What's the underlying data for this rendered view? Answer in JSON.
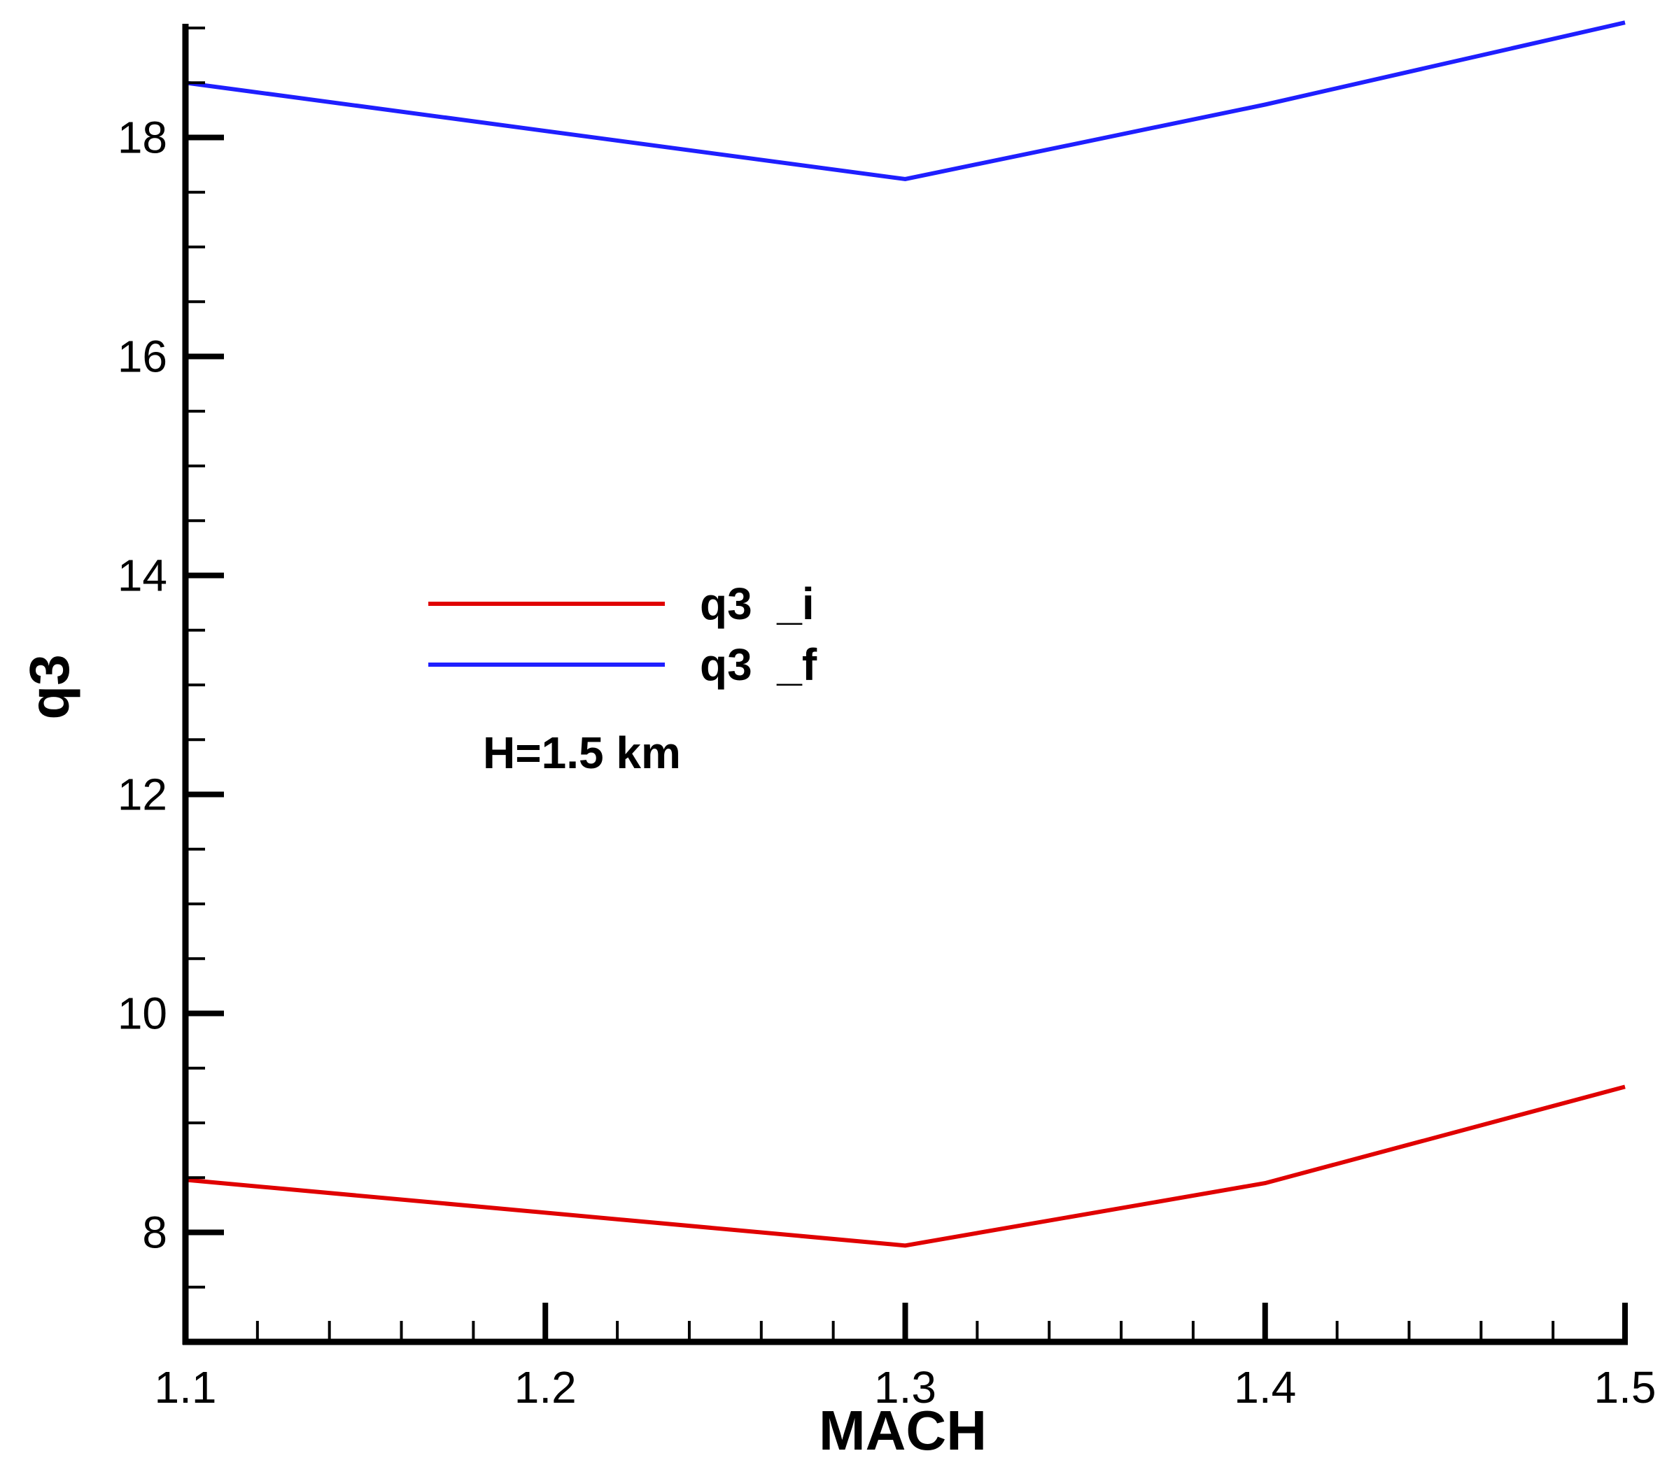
{
  "chart_data": {
    "type": "line",
    "xlabel": "MACH",
    "ylabel": "q3",
    "xlim": [
      1.1,
      1.5
    ],
    "ylim": [
      7.0,
      19.0
    ],
    "x_ticks": [
      "1.1",
      "1.2",
      "1.3",
      "1.4",
      "1.5"
    ],
    "y_ticks": [
      "8",
      "10",
      "12",
      "14",
      "16",
      "18"
    ],
    "x_tick_values": [
      1.1,
      1.2,
      1.3,
      1.4,
      1.5
    ],
    "y_tick_values": [
      8,
      10,
      12,
      14,
      16,
      18
    ],
    "grid": false,
    "legend_position": "center-left",
    "series": [
      {
        "name": "q3  _i",
        "color": "#e00000",
        "x": [
          1.1,
          1.3,
          1.4,
          1.5
        ],
        "y": [
          8.48,
          7.88,
          8.45,
          9.33
        ]
      },
      {
        "name": "q3  _f",
        "color": "#1f1fff",
        "x": [
          1.1,
          1.3,
          1.4,
          1.5
        ],
        "y": [
          18.5,
          17.62,
          18.3,
          19.05
        ]
      }
    ],
    "annotations": [
      "H=1.5 km"
    ]
  }
}
